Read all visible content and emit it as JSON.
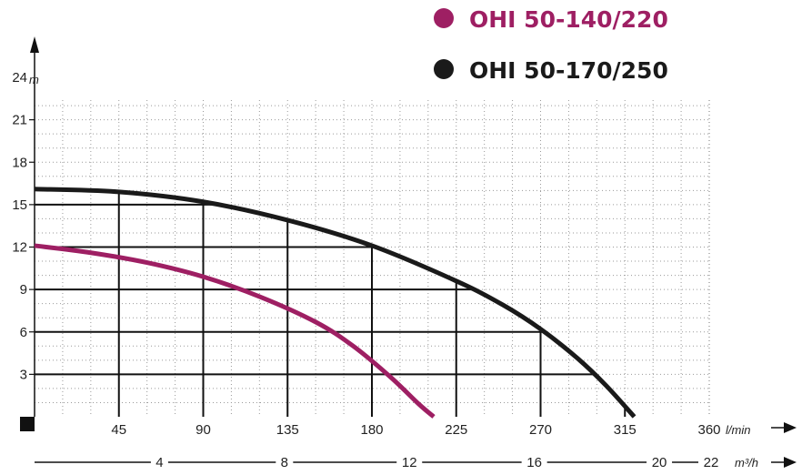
{
  "chart_data": {
    "type": "line",
    "title": "",
    "xlabel": "l/min",
    "x2label": "m³/h",
    "ylabel": "m",
    "xlim": [
      0,
      360
    ],
    "ylim": [
      0,
      24
    ],
    "x_ticks": [
      "45",
      "90",
      "135",
      "180",
      "225",
      "270",
      "315",
      "360"
    ],
    "x2_ticks": [
      "4",
      "8",
      "12",
      "16",
      "20",
      "22"
    ],
    "y_ticks": [
      "3",
      "6",
      "9",
      "12",
      "15",
      "18",
      "21",
      "24"
    ],
    "grid": true,
    "legend_position": "top-right",
    "series": [
      {
        "name": "OHI 50-140/220",
        "color": "#9e1f63",
        "x": [
          0,
          30,
          60,
          90,
          120,
          150,
          170,
          190,
          205,
          213
        ],
        "y": [
          12.1,
          11.6,
          10.9,
          9.9,
          8.5,
          6.7,
          5.0,
          2.8,
          0.9,
          0
        ]
      },
      {
        "name": "OHI 50-170/250",
        "color": "#1a1a1a",
        "x": [
          0,
          45,
          90,
          135,
          180,
          225,
          250,
          270,
          290,
          305,
          320
        ],
        "y": [
          16.1,
          15.9,
          15.2,
          13.9,
          12.1,
          9.6,
          7.9,
          6.2,
          4.1,
          2.2,
          0
        ]
      }
    ]
  }
}
